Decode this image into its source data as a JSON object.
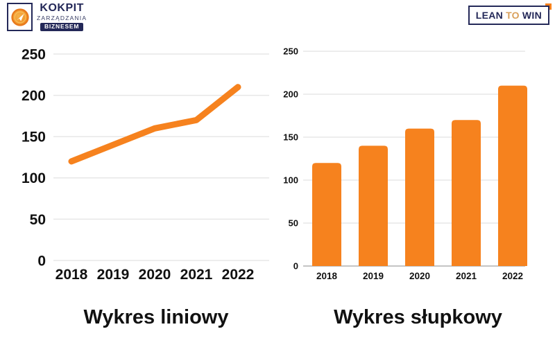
{
  "header": {
    "kokpit_logo": {
      "title": "KOKPIT",
      "subtitle": "ZARZĄDZANIA",
      "badge": "BIZNESEM",
      "icon": "paper-plane-compass-icon"
    },
    "lean_logo": {
      "word1": "LEAN",
      "word2": "TO",
      "word3": "WIN"
    }
  },
  "colors": {
    "accent_orange": "#F6821E",
    "brand_navy": "#232858",
    "lean_to_tan": "#D9A05B",
    "gridline": "#E7E7E7",
    "bar_axis_line": "#C4C4C4",
    "text": "#111111"
  },
  "chart_data": [
    {
      "type": "line",
      "title": "Wykres liniowy",
      "categories": [
        "2018",
        "2019",
        "2020",
        "2021",
        "2022"
      ],
      "values": [
        120,
        140,
        160,
        170,
        210
      ],
      "yticks": [
        0,
        50,
        100,
        150,
        200,
        250
      ],
      "ylim": [
        0,
        250
      ],
      "xlabel": "",
      "ylabel": "",
      "grid": true,
      "legend": "none",
      "series_color": "#F6821E"
    },
    {
      "type": "bar",
      "title": "Wykres słupkowy",
      "categories": [
        "2018",
        "2019",
        "2020",
        "2021",
        "2022"
      ],
      "values": [
        120,
        140,
        160,
        170,
        210
      ],
      "yticks": [
        0,
        50,
        100,
        150,
        200,
        250
      ],
      "ylim": [
        0,
        250
      ],
      "xlabel": "",
      "ylabel": "",
      "grid": true,
      "legend": "none",
      "series_color": "#F6821E"
    }
  ]
}
